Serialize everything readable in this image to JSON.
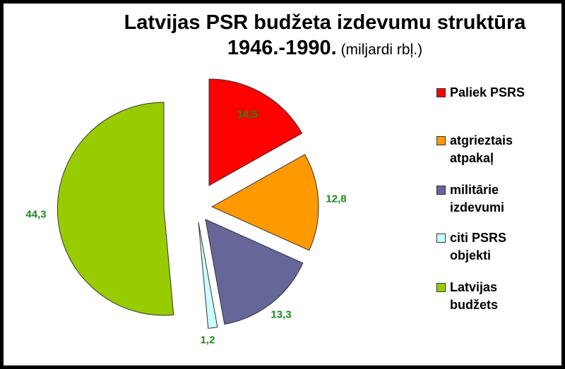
{
  "chart_data": {
    "type": "pie",
    "title": "Latvijas PSR budžeta izdevumu struktūra",
    "subtitle_bold": "1946.-1990.",
    "subtitle_unit": "(miljardi rbļ.)",
    "categories": [
      "Paliek PSRS",
      "atgrieztais atpakaļ",
      "militārie izdevumi",
      "citi PSRS objekti",
      "Latvijas budžets"
    ],
    "values": [
      14.5,
      12.8,
      13.3,
      1.2,
      44.3
    ],
    "value_labels": [
      "14,5",
      "12,8",
      "13,3",
      "1,2",
      "44,3"
    ],
    "colors": [
      "#ff0000",
      "#ff9900",
      "#666699",
      "#ccffff",
      "#99cc00"
    ],
    "exploded": true,
    "legend_position": "right",
    "data_label_color": "#1b8a1b"
  },
  "title": {
    "line1": "Latvijas PSR budžeta izdevumu struktūra",
    "line2_bold": "1946.-1990.",
    "line2_unit": " (miljardi rbļ.)"
  },
  "legend": [
    {
      "line1": "Paliek PSRS",
      "line2": ""
    },
    {
      "line1": "atgrieztais",
      "line2": "atpakaļ"
    },
    {
      "line1": "militārie",
      "line2": "izdevumi"
    },
    {
      "line1": "citi PSRS",
      "line2": "objekti"
    },
    {
      "line1": "Latvijas",
      "line2": "budžets"
    }
  ]
}
